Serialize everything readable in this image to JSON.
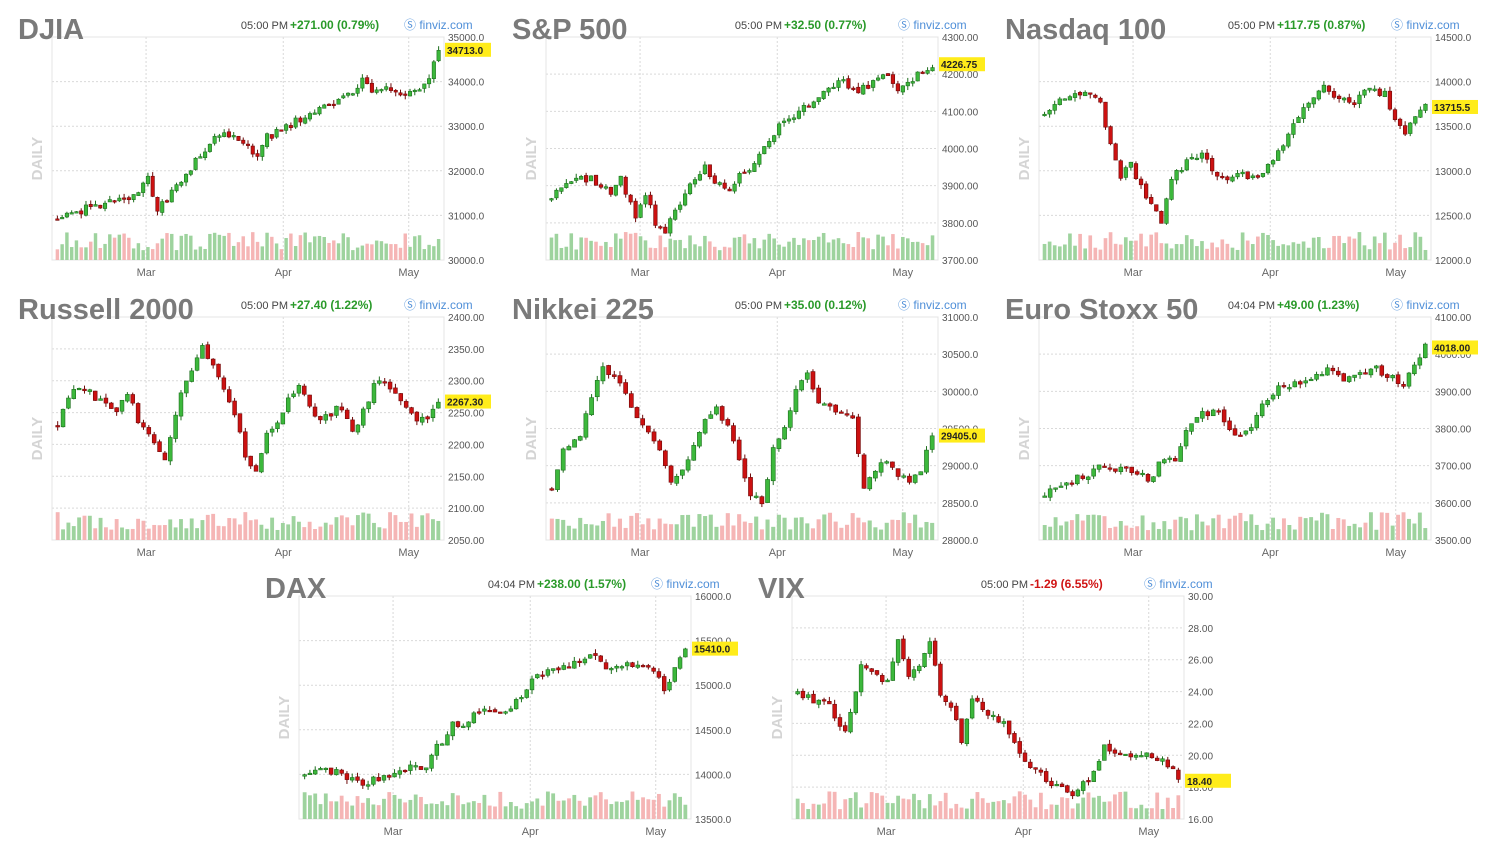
{
  "source_label": "finviz.com",
  "period_label": "DAILY",
  "colors": {
    "up": "#3cb83c",
    "down": "#cc1111",
    "vol_up": "#9ed39e",
    "vol_down": "#f5b5b5",
    "grid": "#d9d9d9",
    "last_bg": "#ffec1a"
  },
  "chart_data": [
    {
      "id": "djia",
      "type": "candlestick",
      "title": "DJIA",
      "time": "05:00 PM",
      "change": "+271.00 (0.79%)",
      "direction": "up",
      "yticks": [
        "35000.0",
        "34000.0",
        "33000.0",
        "32000.0",
        "31000.0",
        "30000.0"
      ],
      "ylim": [
        30000,
        35000
      ],
      "last": 34713.0,
      "last_label": "34713.0",
      "xticks": [
        "Mar",
        "Apr",
        "May"
      ],
      "path": [
        [
          0,
          30950
        ],
        [
          6,
          31150
        ],
        [
          12,
          31300
        ],
        [
          17,
          31450
        ],
        [
          19,
          31900
        ],
        [
          20,
          31450
        ],
        [
          21,
          31100
        ],
        [
          23,
          31350
        ],
        [
          27,
          31900
        ],
        [
          31,
          32500
        ],
        [
          34,
          32800
        ],
        [
          37,
          32850
        ],
        [
          40,
          32500
        ],
        [
          42,
          32300
        ],
        [
          44,
          32750
        ],
        [
          48,
          33000
        ],
        [
          51,
          33150
        ],
        [
          53,
          33300
        ],
        [
          57,
          33450
        ],
        [
          61,
          33700
        ],
        [
          64,
          34000
        ],
        [
          66,
          33800
        ],
        [
          70,
          33850
        ],
        [
          73,
          33700
        ],
        [
          76,
          33800
        ],
        [
          78,
          34150
        ],
        [
          80,
          34713
        ]
      ]
    },
    {
      "id": "sp500",
      "type": "candlestick",
      "title": "S&P 500",
      "time": "05:00 PM",
      "change": "+32.50 (0.77%)",
      "direction": "up",
      "yticks": [
        "4300.00",
        "4200.00",
        "4100.00",
        "4000.00",
        "3900.00",
        "3800.00",
        "3700.00"
      ],
      "ylim": [
        3700,
        4300
      ],
      "last": 4226.75,
      "last_label": "4226.75",
      "xticks": [
        "Mar",
        "Apr",
        "May"
      ],
      "path": [
        [
          0,
          3870
        ],
        [
          4,
          3910
        ],
        [
          8,
          3920
        ],
        [
          10,
          3900
        ],
        [
          12,
          3880
        ],
        [
          14,
          3915
        ],
        [
          17,
          3820
        ],
        [
          19,
          3880
        ],
        [
          21,
          3800
        ],
        [
          23,
          3780
        ],
        [
          25,
          3830
        ],
        [
          28,
          3905
        ],
        [
          31,
          3950
        ],
        [
          34,
          3900
        ],
        [
          36,
          3880
        ],
        [
          38,
          3940
        ],
        [
          40,
          3950
        ],
        [
          43,
          4000
        ],
        [
          46,
          4060
        ],
        [
          50,
          4100
        ],
        [
          53,
          4130
        ],
        [
          56,
          4160
        ],
        [
          59,
          4180
        ],
        [
          62,
          4150
        ],
        [
          65,
          4180
        ],
        [
          68,
          4200
        ],
        [
          70,
          4150
        ],
        [
          72,
          4180
        ],
        [
          74,
          4200
        ],
        [
          77,
          4226.75
        ]
      ]
    },
    {
      "id": "ndx",
      "type": "candlestick",
      "title": "Nasdaq 100",
      "time": "05:00 PM",
      "change": "+117.75 (0.87%)",
      "direction": "up",
      "yticks": [
        "14500.0",
        "14000.0",
        "13500.0",
        "13000.0",
        "12500.0",
        "12000.0"
      ],
      "ylim": [
        12000,
        14500
      ],
      "last": 13715.5,
      "last_label": "13715.5",
      "xticks": [
        "Mar",
        "Apr",
        "May"
      ],
      "path": [
        [
          0,
          13650
        ],
        [
          4,
          13800
        ],
        [
          8,
          13850
        ],
        [
          11,
          13750
        ],
        [
          13,
          13300
        ],
        [
          15,
          12950
        ],
        [
          17,
          13100
        ],
        [
          19,
          12800
        ],
        [
          21,
          12600
        ],
        [
          23,
          12450
        ],
        [
          25,
          12900
        ],
        [
          28,
          13100
        ],
        [
          31,
          13200
        ],
        [
          34,
          12950
        ],
        [
          36,
          12900
        ],
        [
          38,
          13000
        ],
        [
          41,
          12900
        ],
        [
          43,
          12950
        ],
        [
          46,
          13200
        ],
        [
          49,
          13550
        ],
        [
          52,
          13800
        ],
        [
          55,
          13950
        ],
        [
          58,
          13800
        ],
        [
          61,
          13750
        ],
        [
          64,
          13950
        ],
        [
          67,
          13850
        ],
        [
          69,
          13600
        ],
        [
          71,
          13450
        ],
        [
          73,
          13600
        ],
        [
          75,
          13715.5
        ]
      ]
    },
    {
      "id": "rut",
      "type": "candlestick",
      "title": "Russell 2000",
      "time": "05:00 PM",
      "change": "+27.40 (1.22%)",
      "direction": "up",
      "yticks": [
        "2400.00",
        "2350.00",
        "2300.00",
        "2250.00",
        "2200.00",
        "2150.00",
        "2100.00",
        "2050.00"
      ],
      "ylim": [
        2050,
        2400
      ],
      "last": 2267.3,
      "last_label": "2267.30",
      "xticks": [
        "Mar",
        "Apr",
        "May"
      ],
      "path": [
        [
          0,
          2230
        ],
        [
          3,
          2290
        ],
        [
          6,
          2280
        ],
        [
          9,
          2260
        ],
        [
          11,
          2250
        ],
        [
          13,
          2280
        ],
        [
          15,
          2240
        ],
        [
          18,
          2200
        ],
        [
          20,
          2170
        ],
        [
          22,
          2250
        ],
        [
          24,
          2300
        ],
        [
          27,
          2350
        ],
        [
          29,
          2330
        ],
        [
          31,
          2290
        ],
        [
          33,
          2250
        ],
        [
          35,
          2180
        ],
        [
          37,
          2160
        ],
        [
          39,
          2220
        ],
        [
          41,
          2230
        ],
        [
          43,
          2270
        ],
        [
          45,
          2290
        ],
        [
          47,
          2260
        ],
        [
          49,
          2240
        ],
        [
          51,
          2250
        ],
        [
          53,
          2260
        ],
        [
          55,
          2220
        ],
        [
          57,
          2250
        ],
        [
          59,
          2290
        ],
        [
          61,
          2300
        ],
        [
          63,
          2280
        ],
        [
          65,
          2260
        ],
        [
          67,
          2240
        ],
        [
          69,
          2235
        ],
        [
          71,
          2267.3
        ]
      ]
    },
    {
      "id": "nikkei",
      "type": "candlestick",
      "title": "Nikkei 225",
      "time": "05:00 PM",
      "change": "+35.00 (0.12%)",
      "direction": "up",
      "yticks": [
        "31000.0",
        "30500.0",
        "30000.0",
        "29500.0",
        "29000.0",
        "28500.0",
        "28000.0"
      ],
      "ylim": [
        28000,
        31000
      ],
      "last": 29405.0,
      "last_label": "29405.0",
      "xticks": [
        "Mar",
        "Apr",
        "May"
      ],
      "path": [
        [
          0,
          28700
        ],
        [
          2,
          29200
        ],
        [
          5,
          29400
        ],
        [
          7,
          29900
        ],
        [
          9,
          30300
        ],
        [
          11,
          30200
        ],
        [
          13,
          30000
        ],
        [
          15,
          29600
        ],
        [
          17,
          29500
        ],
        [
          19,
          29200
        ],
        [
          21,
          28800
        ],
        [
          23,
          28900
        ],
        [
          25,
          29300
        ],
        [
          27,
          29600
        ],
        [
          29,
          29800
        ],
        [
          31,
          29500
        ],
        [
          33,
          29100
        ],
        [
          35,
          28600
        ],
        [
          37,
          28500
        ],
        [
          39,
          29200
        ],
        [
          41,
          29500
        ],
        [
          43,
          30000
        ],
        [
          45,
          30200
        ],
        [
          47,
          29800
        ],
        [
          49,
          29800
        ],
        [
          51,
          29700
        ],
        [
          53,
          29600
        ],
        [
          55,
          28700
        ],
        [
          57,
          28900
        ],
        [
          59,
          29100
        ],
        [
          61,
          28900
        ],
        [
          63,
          28800
        ],
        [
          65,
          28950
        ],
        [
          67,
          29405
        ]
      ]
    },
    {
      "id": "sx5e",
      "type": "candlestick",
      "title": "Euro Stoxx 50",
      "time": "04:04 PM",
      "change": "+49.00 (1.23%)",
      "direction": "up",
      "yticks": [
        "4100.00",
        "4000.00",
        "3900.00",
        "3800.00",
        "3700.00",
        "3600.00",
        "3500.00"
      ],
      "ylim": [
        3500,
        4100
      ],
      "last": 4018.0,
      "last_label": "4018.00",
      "xticks": [
        "Mar",
        "Apr",
        "May"
      ],
      "path": [
        [
          0,
          3620
        ],
        [
          4,
          3650
        ],
        [
          8,
          3680
        ],
        [
          11,
          3700
        ],
        [
          14,
          3690
        ],
        [
          17,
          3680
        ],
        [
          19,
          3660
        ],
        [
          21,
          3700
        ],
        [
          24,
          3720
        ],
        [
          26,
          3800
        ],
        [
          29,
          3840
        ],
        [
          32,
          3850
        ],
        [
          34,
          3790
        ],
        [
          36,
          3780
        ],
        [
          38,
          3810
        ],
        [
          40,
          3860
        ],
        [
          43,
          3910
        ],
        [
          46,
          3920
        ],
        [
          49,
          3930
        ],
        [
          52,
          3960
        ],
        [
          55,
          3930
        ],
        [
          58,
          3950
        ],
        [
          61,
          3960
        ],
        [
          64,
          3940
        ],
        [
          66,
          3920
        ],
        [
          68,
          3970
        ],
        [
          70,
          4018
        ]
      ]
    },
    {
      "id": "dax",
      "type": "candlestick",
      "title": "DAX",
      "time": "04:04 PM",
      "change": "+238.00 (1.57%)",
      "direction": "up",
      "yticks": [
        "16000.0",
        "15500.0",
        "15000.0",
        "14500.0",
        "14000.0",
        "13500.0"
      ],
      "ylim": [
        13500,
        16000
      ],
      "last": 15410.0,
      "last_label": "15410.0",
      "xticks": [
        "Mar",
        "Apr",
        "May"
      ],
      "path": [
        [
          0,
          14000
        ],
        [
          4,
          14050
        ],
        [
          8,
          13980
        ],
        [
          11,
          13900
        ],
        [
          14,
          13950
        ],
        [
          17,
          14000
        ],
        [
          20,
          14100
        ],
        [
          23,
          14050
        ],
        [
          25,
          14300
        ],
        [
          28,
          14550
        ],
        [
          31,
          14600
        ],
        [
          34,
          14750
        ],
        [
          37,
          14700
        ],
        [
          40,
          14800
        ],
        [
          43,
          15050
        ],
        [
          46,
          15150
        ],
        [
          49,
          15200
        ],
        [
          52,
          15250
        ],
        [
          55,
          15350
        ],
        [
          57,
          15200
        ],
        [
          60,
          15250
        ],
        [
          63,
          15200
        ],
        [
          66,
          15150
        ],
        [
          68,
          14950
        ],
        [
          70,
          15200
        ],
        [
          72,
          15410
        ]
      ]
    },
    {
      "id": "vix",
      "type": "candlestick",
      "title": "VIX",
      "time": "05:00 PM",
      "change": "-1.29 (6.55%)",
      "direction": "down",
      "yticks": [
        "30.00",
        "28.00",
        "26.00",
        "24.00",
        "22.00",
        "20.00",
        "18.00",
        "16.00"
      ],
      "ylim": [
        16,
        30
      ],
      "last": 18.4,
      "last_label": "18.40",
      "xticks": [
        "Mar",
        "Apr",
        "May"
      ],
      "path": [
        [
          0,
          24
        ],
        [
          3,
          23.5
        ],
        [
          6,
          23
        ],
        [
          9,
          21.5
        ],
        [
          12,
          25.5
        ],
        [
          15,
          25
        ],
        [
          17,
          24.5
        ],
        [
          19,
          27.5
        ],
        [
          21,
          25
        ],
        [
          23,
          25.5
        ],
        [
          25,
          27
        ],
        [
          27,
          24
        ],
        [
          29,
          23
        ],
        [
          31,
          21
        ],
        [
          33,
          23.5
        ],
        [
          35,
          23
        ],
        [
          37,
          22.5
        ],
        [
          39,
          22
        ],
        [
          41,
          21
        ],
        [
          43,
          19.5
        ],
        [
          46,
          18.8
        ],
        [
          49,
          18
        ],
        [
          52,
          17.5
        ],
        [
          55,
          18.5
        ],
        [
          58,
          20.5
        ],
        [
          61,
          20
        ],
        [
          64,
          19.8
        ],
        [
          67,
          20
        ],
        [
          70,
          19.5
        ],
        [
          72,
          18.4
        ]
      ]
    }
  ]
}
